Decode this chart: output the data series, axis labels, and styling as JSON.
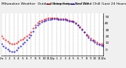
{
  "title": "Milwaukee Weather  Outdoor Temperature (vs) Wind Chill (Last 24 Hours)",
  "title_fontsize": 3.2,
  "bg_color": "#f0f0f0",
  "plot_bg_color": "#ffffff",
  "grid_color": "#999999",
  "line1_color": "#ff0000",
  "line2_color": "#0000dd",
  "line1_label": "Outdoor Temp",
  "line2_label": "Wind Chill",
  "ylim": [
    -10,
    55
  ],
  "yticks": [
    0,
    10,
    20,
    30,
    40,
    50
  ],
  "ytick_fontsize": 3.0,
  "xtick_fontsize": 2.8,
  "temp_data": [
    20,
    17,
    14,
    12,
    10,
    9,
    9,
    10,
    12,
    14,
    16,
    18,
    20,
    23,
    27,
    33,
    38,
    41,
    43,
    45,
    46,
    47,
    48,
    48,
    48,
    48,
    48,
    47,
    47,
    47,
    47,
    46,
    45,
    44,
    43,
    41,
    38,
    35,
    31,
    27,
    23,
    20,
    17,
    15,
    13,
    11,
    9,
    8,
    7
  ],
  "chill_data": [
    8,
    5,
    2,
    0,
    -2,
    -3,
    -3,
    -1,
    2,
    5,
    8,
    11,
    14,
    18,
    22,
    28,
    34,
    38,
    40,
    42,
    44,
    45,
    46,
    46,
    47,
    47,
    47,
    46,
    46,
    46,
    46,
    45,
    44,
    43,
    42,
    40,
    37,
    34,
    30,
    26,
    22,
    18,
    15,
    13,
    11,
    9,
    7,
    6,
    5
  ],
  "xtick_labels": [
    "12a",
    "1",
    "2",
    "3",
    "4",
    "5",
    "6",
    "7",
    "8",
    "9",
    "10",
    "11",
    "12p",
    "1",
    "2",
    "3",
    "4",
    "5",
    "6",
    "7",
    "8",
    "9",
    "10",
    "11",
    "12a"
  ],
  "n_points": 49,
  "n_xticks": 25
}
